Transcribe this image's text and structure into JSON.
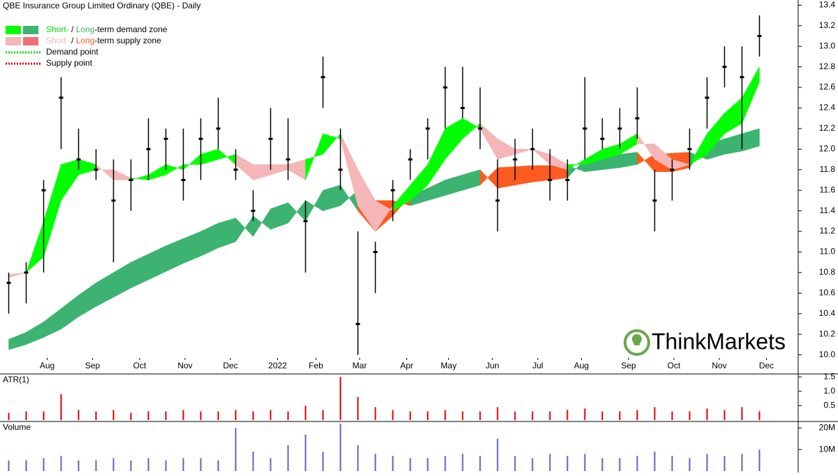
{
  "chart_data": {
    "type": "candlestick",
    "title": "QBE Insurance Group Limited Ordinary (QBE) - Daily",
    "legend": [
      {
        "parts": [
          {
            "text": "Short-",
            "color": "#00dd00"
          },
          {
            "text": " / ",
            "color": "#000000"
          },
          {
            "text": "Long",
            "color": "#3cb371"
          },
          {
            "text": "-term demand zone",
            "color": "#000000"
          }
        ],
        "swatches": [
          "#00ff00",
          "#3cb371"
        ]
      },
      {
        "parts": [
          {
            "text": "Short-",
            "color": "#f4b6b6"
          },
          {
            "text": " / ",
            "color": "#000000"
          },
          {
            "text": "Long",
            "color": "#ff5a1f"
          },
          {
            "text": "-term supply zone",
            "color": "#000000"
          }
        ],
        "swatches": [
          "#f4b6b6",
          "#f07070"
        ]
      },
      {
        "parts": [
          {
            "text": "Demand point",
            "color": "#000000"
          }
        ],
        "dots": "#00dd00"
      },
      {
        "parts": [
          {
            "text": "Supply point",
            "color": "#000000"
          }
        ],
        "dots": "#dd0000"
      }
    ],
    "watermark": "ThinkMarkets",
    "x": [
      0,
      1,
      2,
      3,
      4,
      5,
      6,
      7,
      8,
      9,
      10,
      11,
      12,
      13,
      14,
      15,
      16,
      17,
      18,
      19,
      20,
      21,
      22,
      23,
      24,
      25,
      26,
      27,
      28,
      29,
      30,
      31,
      32,
      33,
      34,
      35,
      36,
      37,
      38,
      39,
      40,
      41,
      42,
      43
    ],
    "xlim": [
      -0.5,
      45.1
    ],
    "xticks": [
      {
        "value": 2.2,
        "label": "Aug"
      },
      {
        "value": 4.8,
        "label": "Sep"
      },
      {
        "value": 7.5,
        "label": "Oct"
      },
      {
        "value": 10.1,
        "label": "Nov"
      },
      {
        "value": 12.7,
        "label": "Dec"
      },
      {
        "value": 15.4,
        "label": "2022"
      },
      {
        "value": 17.6,
        "label": "Feb"
      },
      {
        "value": 20.1,
        "label": "Mar"
      },
      {
        "value": 22.8,
        "label": "Apr"
      },
      {
        "value": 25.2,
        "label": "May"
      },
      {
        "value": 27.7,
        "label": "Jun"
      },
      {
        "value": 30.3,
        "label": "Jul"
      },
      {
        "value": 32.8,
        "label": "Aug"
      },
      {
        "value": 35.5,
        "label": "Sep"
      },
      {
        "value": 38.1,
        "label": "Oct"
      },
      {
        "value": 40.7,
        "label": "Nov"
      },
      {
        "value": 43.4,
        "label": "Dec"
      }
    ],
    "ylim": [
      9.95,
      13.45
    ],
    "yticks": [
      {
        "value": 10,
        "label": "10.0"
      },
      10.2,
      10.4,
      10.6,
      10.8,
      {
        "value": 11,
        "label": "11.0"
      },
      11.2,
      11.4,
      11.6,
      11.8,
      {
        "value": 12,
        "label": "12.0"
      },
      12.2,
      12.4,
      12.6,
      12.8,
      {
        "value": 13,
        "label": "13.0"
      },
      13.2,
      13.4
    ],
    "high": [
      10.8,
      10.9,
      11.7,
      12.7,
      12.2,
      12.0,
      11.9,
      11.9,
      12.3,
      12.2,
      12.2,
      12.3,
      12.5,
      12.0,
      11.6,
      12.4,
      12.3,
      11.5,
      12.9,
      12.2,
      11.2,
      11.1,
      11.7,
      12.0,
      12.3,
      12.8,
      12.8,
      12.6,
      11.9,
      12.1,
      12.2,
      12.0,
      11.9,
      12.7,
      12.3,
      12.4,
      12.6,
      11.8,
      11.9,
      12.2,
      12.7,
      13.0,
      13.0,
      13.3
    ],
    "low": [
      10.4,
      10.5,
      10.8,
      12.0,
      11.8,
      11.7,
      10.9,
      11.4,
      11.7,
      11.8,
      11.5,
      11.7,
      12.0,
      11.7,
      11.3,
      11.8,
      11.7,
      10.8,
      12.4,
      11.6,
      10.0,
      10.6,
      11.3,
      11.7,
      11.9,
      12.2,
      12.3,
      12.0,
      11.2,
      11.7,
      11.8,
      11.5,
      11.5,
      11.9,
      12.0,
      12.0,
      12.1,
      11.2,
      11.5,
      11.8,
      12.2,
      12.6,
      12.0,
      12.9
    ],
    "close": [
      10.7,
      10.8,
      11.6,
      12.5,
      11.9,
      11.8,
      11.5,
      11.7,
      12.0,
      12.1,
      11.7,
      12.1,
      12.2,
      11.8,
      11.4,
      12.1,
      11.9,
      11.3,
      12.7,
      11.8,
      10.3,
      11.0,
      11.6,
      11.9,
      12.2,
      12.6,
      12.4,
      12.2,
      11.5,
      11.9,
      12.0,
      11.7,
      11.7,
      12.2,
      12.1,
      12.2,
      12.3,
      11.5,
      11.8,
      12.0,
      12.5,
      12.8,
      12.7,
      13.1
    ],
    "zones": [
      {
        "fast": [
          10.75,
          10.8,
          11.3,
          11.85,
          11.9,
          11.85,
          11.7,
          11.7,
          11.75,
          11.85,
          11.8,
          11.95,
          12.0,
          11.85,
          11.7,
          11.75,
          11.8,
          11.7,
          12.15,
          12.1,
          11.45,
          11.2,
          11.45,
          11.65,
          11.85,
          12.2,
          12.3,
          12.2,
          11.9,
          11.95,
          12.0,
          11.85,
          11.8,
          11.9,
          12.0,
          12.05,
          12.15,
          11.9,
          11.8,
          11.85,
          12.15,
          12.35,
          12.5,
          12.8
        ],
        "slow": [
          10.78,
          10.8,
          10.95,
          11.5,
          11.75,
          11.8,
          11.8,
          11.72,
          11.7,
          11.75,
          11.85,
          11.85,
          11.9,
          11.95,
          11.85,
          11.85,
          11.85,
          11.9,
          11.95,
          12.15,
          11.8,
          11.5,
          11.4,
          11.5,
          11.65,
          11.9,
          12.1,
          12.25,
          12.1,
          12.0,
          12.0,
          11.95,
          11.85,
          11.85,
          11.9,
          11.95,
          12.05,
          12.05,
          11.9,
          11.85,
          11.95,
          12.15,
          12.25,
          12.65
        ],
        "up_color": "#00ff00",
        "down_color": "#f4b6b6"
      },
      {
        "fast": [
          10.15,
          10.22,
          10.32,
          10.45,
          10.58,
          10.7,
          10.8,
          10.9,
          10.98,
          11.06,
          11.13,
          11.2,
          11.28,
          11.33,
          11.15,
          11.42,
          11.48,
          11.3,
          11.6,
          11.65,
          11.4,
          11.2,
          11.35,
          11.55,
          11.62,
          11.7,
          11.75,
          11.8,
          11.62,
          11.65,
          11.68,
          11.7,
          11.72,
          11.9,
          11.93,
          11.95,
          11.97,
          11.78,
          11.78,
          11.82,
          12.05,
          12.1,
          12.15,
          12.2
        ],
        "slow": [
          10.05,
          10.1,
          10.17,
          10.25,
          10.37,
          10.47,
          10.56,
          10.65,
          10.73,
          10.81,
          10.89,
          10.96,
          11.04,
          11.1,
          11.35,
          11.22,
          11.28,
          11.5,
          11.4,
          11.45,
          11.6,
          11.5,
          11.5,
          11.45,
          11.5,
          11.55,
          11.6,
          11.65,
          11.82,
          11.83,
          11.84,
          11.84,
          11.84,
          11.78,
          11.8,
          11.82,
          11.85,
          11.95,
          11.96,
          11.97,
          11.9,
          11.95,
          11.98,
          12.03
        ],
        "up_color": "#3cb371",
        "down_color": "#ff5a1f"
      }
    ],
    "atr": {
      "label": "ATR(1)",
      "ylim": [
        0,
        1.6
      ],
      "yticks": [
        0.5,
        {
          "value": 1,
          "label": "1.0"
        },
        1.5
      ],
      "color": "#dd0000",
      "values": [
        0.25,
        0.3,
        0.3,
        0.9,
        0.35,
        0.3,
        0.35,
        0.25,
        0.3,
        0.3,
        0.35,
        0.3,
        0.3,
        0.35,
        0.3,
        0.35,
        0.3,
        0.5,
        0.35,
        1.5,
        0.8,
        0.45,
        0.35,
        0.3,
        0.3,
        0.35,
        0.3,
        0.3,
        0.45,
        0.3,
        0.3,
        0.3,
        0.35,
        0.4,
        0.3,
        0.3,
        0.35,
        0.45,
        0.3,
        0.3,
        0.4,
        0.35,
        0.45,
        0.3
      ]
    },
    "volume": {
      "label": "Volume",
      "ylim": [
        0,
        23000000
      ],
      "yticks": [
        {
          "value": 10000000,
          "label": "10M"
        },
        {
          "value": 20000000,
          "label": "20M"
        }
      ],
      "color": "#6060c0",
      "values": [
        5000000,
        5000000,
        6000000,
        7000000,
        5000000,
        5000000,
        6000000,
        5000000,
        6000000,
        5000000,
        6000000,
        6000000,
        5000000,
        20000000,
        9000000,
        6000000,
        12000000,
        17000000,
        9000000,
        22000000,
        12000000,
        8000000,
        7000000,
        6000000,
        6000000,
        7000000,
        8000000,
        7000000,
        15000000,
        7000000,
        6000000,
        8000000,
        7000000,
        8000000,
        6000000,
        6000000,
        7000000,
        9000000,
        7000000,
        6000000,
        8000000,
        7000000,
        8000000,
        10000000
      ]
    }
  }
}
